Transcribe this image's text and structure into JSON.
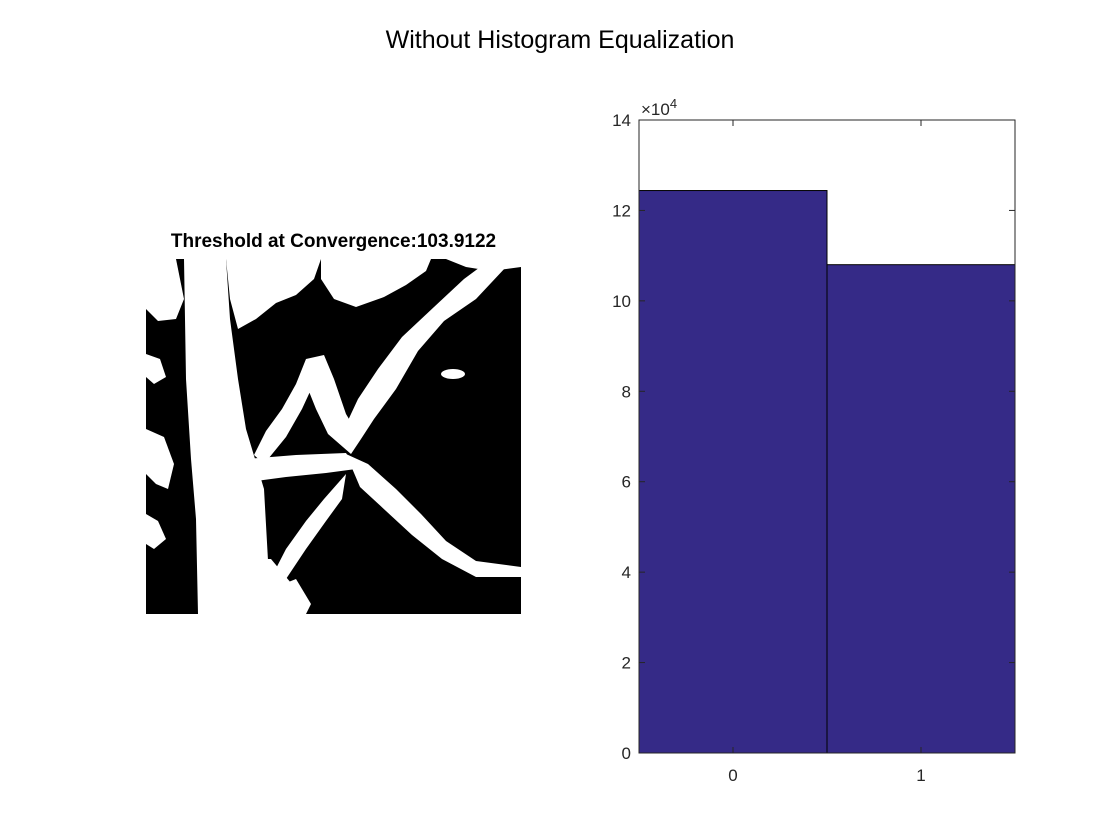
{
  "figure": {
    "title": "Without Histogram Equalization"
  },
  "image_panel": {
    "title": "Threshold at Convergence:103.9122"
  },
  "chart_data": {
    "type": "bar",
    "categories": [
      "0",
      "1"
    ],
    "values": [
      124400,
      108000
    ],
    "ylim": [
      0,
      140000
    ],
    "yticks": [
      0,
      20000,
      40000,
      60000,
      80000,
      100000,
      120000,
      140000
    ],
    "ytick_labels": [
      "0",
      "2",
      "4",
      "6",
      "8",
      "10",
      "12",
      "14"
    ],
    "exponent_base": "×10",
    "exponent_power": "4",
    "bar_color": "#352a87",
    "grid": false
  }
}
